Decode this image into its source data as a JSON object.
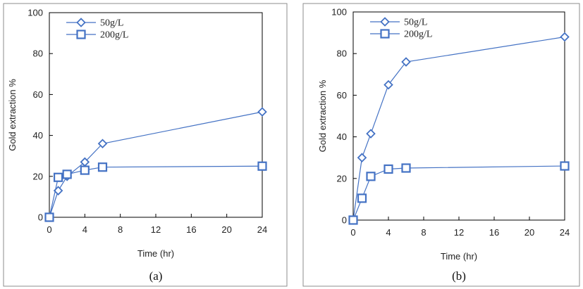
{
  "chart_data": [
    {
      "type": "line",
      "panel": "(a)",
      "xlabel": "Time (hr)",
      "ylabel": "Gold extraction %",
      "xlim": [
        0,
        24
      ],
      "ylim": [
        0,
        100
      ],
      "xticks": [
        0,
        4,
        8,
        12,
        16,
        20,
        24
      ],
      "yticks": [
        0,
        20,
        40,
        60,
        80,
        100
      ],
      "legend_position": "top-left",
      "grid": false,
      "series": [
        {
          "name": "50g/L",
          "marker": "diamond",
          "color": "#4472C4",
          "x": [
            0,
            1,
            2,
            4,
            6,
            24
          ],
          "y": [
            0,
            13,
            20,
            27,
            36,
            51.5
          ]
        },
        {
          "name": "200g/L",
          "marker": "square",
          "color": "#4472C4",
          "x": [
            0,
            1,
            2,
            4,
            6,
            24
          ],
          "y": [
            0,
            19.5,
            21,
            23,
            24.5,
            25
          ]
        }
      ]
    },
    {
      "type": "line",
      "panel": "(b)",
      "xlabel": "Time (hr)",
      "ylabel": "Gold extraction %",
      "xlim": [
        0,
        24
      ],
      "ylim": [
        0,
        100
      ],
      "xticks": [
        0,
        4,
        8,
        12,
        16,
        20,
        24
      ],
      "yticks": [
        0,
        20,
        40,
        60,
        80,
        100
      ],
      "legend_position": "top-left",
      "grid": false,
      "series": [
        {
          "name": "50g/L",
          "marker": "diamond",
          "color": "#4472C4",
          "x": [
            0,
            1,
            2,
            4,
            6,
            24
          ],
          "y": [
            0,
            30,
            41.5,
            65,
            76,
            88
          ]
        },
        {
          "name": "200g/L",
          "marker": "square",
          "color": "#4472C4",
          "x": [
            0,
            1,
            2,
            4,
            6,
            24
          ],
          "y": [
            0,
            10.5,
            21,
            24.5,
            25,
            26
          ]
        }
      ]
    }
  ]
}
